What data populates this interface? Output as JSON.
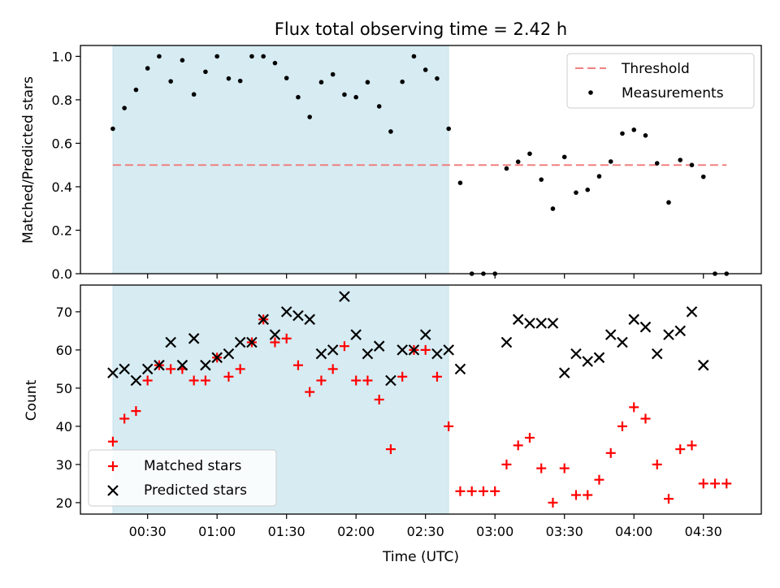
{
  "title": "Flux total observing time = 2.42 h",
  "chart_data": [
    {
      "type": "scatter",
      "panel": "top",
      "ylabel": "Matched/Predicted stars",
      "ylim": [
        0,
        1.05
      ],
      "yticks": [
        "0.0",
        "0.2",
        "0.4",
        "0.6",
        "0.8",
        "1.0"
      ],
      "shaded_region": {
        "x_start": "00:15",
        "x_end": "02:40",
        "color": "#add8e6"
      },
      "threshold": {
        "name": "Threshold",
        "value": 0.5,
        "x_start": "00:15",
        "x_end": "04:40",
        "color": "#f08080"
      },
      "series": [
        {
          "name": "Measurements",
          "marker": "dot",
          "color": "#000000",
          "x": [
            "00:15",
            "00:20",
            "00:25",
            "00:30",
            "00:35",
            "00:40",
            "00:45",
            "00:50",
            "00:55",
            "01:00",
            "01:05",
            "01:10",
            "01:15",
            "01:20",
            "01:25",
            "01:30",
            "01:35",
            "01:40",
            "01:45",
            "01:50",
            "01:55",
            "02:00",
            "02:05",
            "02:10",
            "02:15",
            "02:20",
            "02:25",
            "02:30",
            "02:35",
            "02:40",
            "02:45",
            "02:50",
            "02:55",
            "03:00",
            "03:05",
            "03:10",
            "03:15",
            "03:20",
            "03:25",
            "03:30",
            "03:35",
            "03:40",
            "03:45",
            "03:50",
            "03:55",
            "04:00",
            "04:05",
            "04:10",
            "04:15",
            "04:20",
            "04:25",
            "04:30",
            "04:35",
            "04:40"
          ],
          "y": [
            0.667,
            0.762,
            0.846,
            0.945,
            1.0,
            0.885,
            0.982,
            0.825,
            0.929,
            1.0,
            0.898,
            0.887,
            1.0,
            1.0,
            0.969,
            0.9,
            0.812,
            0.721,
            0.881,
            0.917,
            0.824,
            0.812,
            0.881,
            0.77,
            0.654,
            0.883,
            1.0,
            0.938,
            0.898,
            0.667,
            0.418,
            0.0,
            0.0,
            0.0,
            0.484,
            0.515,
            0.552,
            0.433,
            0.299,
            0.537,
            0.373,
            0.386,
            0.448,
            0.516,
            0.645,
            0.662,
            0.636,
            0.508,
            0.328,
            0.523,
            0.5,
            0.446,
            0.0,
            0.0
          ]
        }
      ],
      "legend": {
        "placement": "top-right",
        "entries": [
          "Threshold",
          "Measurements"
        ]
      }
    },
    {
      "type": "scatter",
      "panel": "bottom",
      "xlabel": "Time (UTC)",
      "ylabel": "Count",
      "ylim": [
        17,
        77
      ],
      "yticks": [
        "20",
        "30",
        "40",
        "50",
        "60",
        "70"
      ],
      "xticks": [
        "00:30",
        "01:00",
        "01:30",
        "02:00",
        "02:30",
        "03:00",
        "03:30",
        "04:00",
        "04:30"
      ],
      "xlim": [
        "00:01",
        "04:55"
      ],
      "shaded_region": {
        "x_start": "00:15",
        "x_end": "02:40",
        "color": "#add8e6"
      },
      "series": [
        {
          "name": "Matched stars",
          "marker": "plus",
          "color": "#ff0000",
          "x": [
            "00:15",
            "00:20",
            "00:25",
            "00:30",
            "00:35",
            "00:40",
            "00:45",
            "00:50",
            "00:55",
            "01:00",
            "01:05",
            "01:10",
            "01:15",
            "01:20",
            "01:25",
            "01:30",
            "01:35",
            "01:40",
            "01:45",
            "01:50",
            "01:55",
            "02:00",
            "02:05",
            "02:10",
            "02:15",
            "02:20",
            "02:25",
            "02:30",
            "02:35",
            "02:40",
            "02:45",
            "02:50",
            "02:55",
            "03:00",
            "03:05",
            "03:10",
            "03:15",
            "03:20",
            "03:25",
            "03:30",
            "03:35",
            "03:40",
            "03:45",
            "03:50",
            "03:55",
            "04:00",
            "04:05",
            "04:10",
            "04:15",
            "04:20",
            "04:25",
            "04:30",
            "04:35",
            "04:40"
          ],
          "y": [
            36,
            42,
            44,
            52,
            56,
            55,
            55,
            52,
            52,
            58,
            53,
            55,
            62,
            68,
            62,
            63,
            56,
            49,
            52,
            55,
            61,
            52,
            52,
            47,
            34,
            53,
            60,
            60,
            53,
            40,
            23,
            23,
            23,
            23,
            30,
            35,
            37,
            29,
            20,
            29,
            22,
            22,
            26,
            33,
            40,
            45,
            42,
            30,
            21,
            34,
            35,
            25,
            25,
            25
          ]
        },
        {
          "name": "Predicted stars",
          "marker": "x",
          "color": "#000000",
          "x": [
            "00:15",
            "00:20",
            "00:25",
            "00:30",
            "00:35",
            "00:40",
            "00:45",
            "00:50",
            "00:55",
            "01:00",
            "01:05",
            "01:10",
            "01:15",
            "01:20",
            "01:25",
            "01:30",
            "01:35",
            "01:40",
            "01:45",
            "01:50",
            "01:55",
            "02:00",
            "02:05",
            "02:10",
            "02:15",
            "02:20",
            "02:25",
            "02:30",
            "02:35",
            "02:40",
            "02:45",
            "03:05",
            "03:10",
            "03:15",
            "03:20",
            "03:25",
            "03:30",
            "03:35",
            "03:40",
            "03:45",
            "03:50",
            "03:55",
            "04:00",
            "04:05",
            "04:10",
            "04:15",
            "04:20",
            "04:25",
            "04:30"
          ],
          "y": [
            54,
            55,
            52,
            55,
            56,
            62,
            56,
            63,
            56,
            58,
            59,
            62,
            62,
            68,
            64,
            70,
            69,
            68,
            59,
            60,
            74,
            64,
            59,
            61,
            52,
            60,
            60,
            64,
            59,
            60,
            55,
            62,
            68,
            67,
            67,
            67,
            54,
            59,
            57,
            58,
            64,
            62,
            68,
            66,
            59,
            64,
            65,
            70,
            56
          ]
        }
      ],
      "legend": {
        "placement": "bottom-left",
        "entries": [
          "Matched stars",
          "Predicted stars"
        ]
      }
    }
  ]
}
